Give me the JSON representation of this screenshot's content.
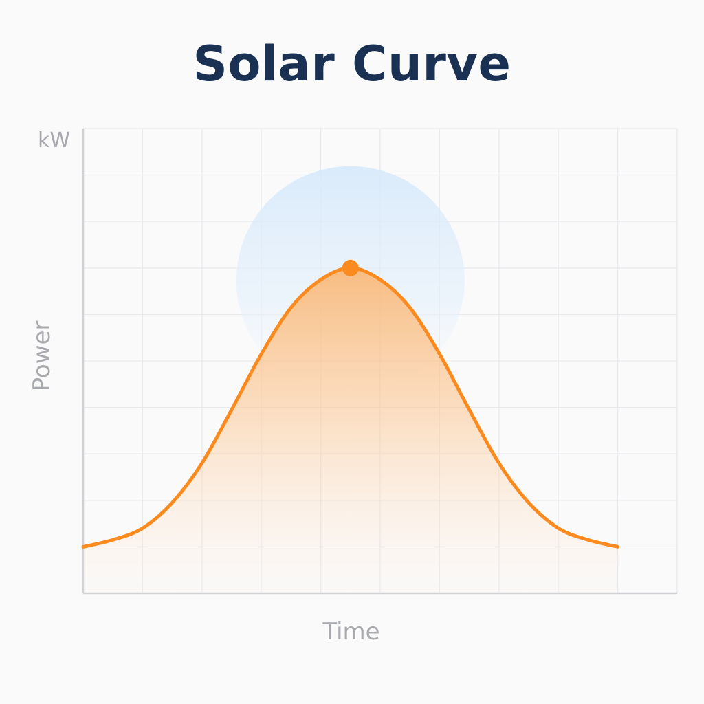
{
  "title": "Solar Curve",
  "chart_data": {
    "type": "area",
    "title": "Solar Curve",
    "xlabel": "Time",
    "ylabel": "Power",
    "yunit": "kW",
    "grid": true,
    "legend": "none",
    "ylim": [
      0,
      10
    ],
    "xlim": [
      0,
      10
    ],
    "series": [
      {
        "x": [
          0,
          0.5,
          1,
          1.5,
          2,
          2.5,
          3,
          3.5,
          4,
          4.5,
          5,
          5.5,
          6,
          6.5,
          7,
          7.5,
          8,
          8.5,
          9
        ],
        "values": [
          1.0,
          1.15,
          1.4,
          1.95,
          2.8,
          3.95,
          5.15,
          6.15,
          6.75,
          7.0,
          6.75,
          6.15,
          5.15,
          3.95,
          2.8,
          1.95,
          1.4,
          1.15,
          1.0
        ]
      }
    ],
    "peak": {
      "x": 4.5,
      "y": 7.0
    },
    "colors": {
      "line": "#fb8b1e",
      "fill": "#fbb36c",
      "glow": "#cfe6fb",
      "grid": "#e8e9ec",
      "axis": "#cfd1d5",
      "title": "#1b3153",
      "label": "#a7a9ad"
    }
  }
}
